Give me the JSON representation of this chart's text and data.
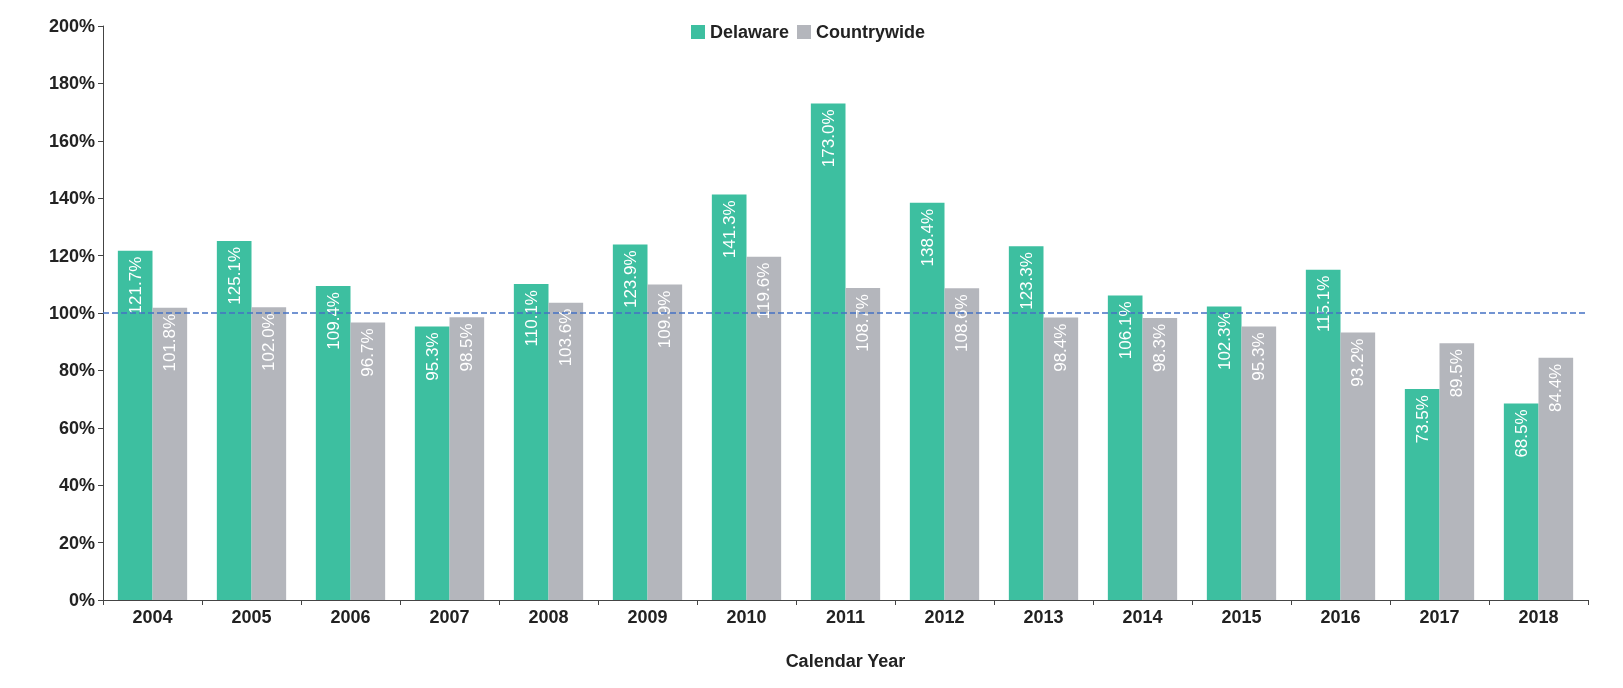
{
  "chart_data": {
    "type": "bar",
    "xlabel": "Calendar Year",
    "categories": [
      "2004",
      "2005",
      "2006",
      "2007",
      "2008",
      "2009",
      "2010",
      "2011",
      "2012",
      "2013",
      "2014",
      "2015",
      "2016",
      "2017",
      "2018"
    ],
    "series": [
      {
        "name": "Delaware",
        "color": "#3dbfa0",
        "values": [
          121.7,
          125.1,
          109.4,
          95.3,
          110.1,
          123.9,
          141.3,
          173.0,
          138.4,
          123.3,
          106.1,
          102.3,
          115.1,
          73.5,
          68.5
        ],
        "value_labels": [
          "121.7%",
          "125.1%",
          "109.4%",
          "95.3%",
          "110.1%",
          "123.9%",
          "141.3%",
          "173.0%",
          "138.4%",
          "123.3%",
          "106.1%",
          "102.3%",
          "115.1%",
          "73.5%",
          "68.5%"
        ]
      },
      {
        "name": "Countrywide",
        "color": "#b4b6bc",
        "values": [
          101.8,
          102.0,
          96.7,
          98.5,
          103.6,
          109.9,
          119.6,
          108.7,
          108.6,
          98.4,
          98.3,
          95.3,
          93.2,
          89.5,
          84.4
        ],
        "value_labels": [
          "101.8%",
          "102.0%",
          "96.7%",
          "98.5%",
          "103.6%",
          "109.9%",
          "119.6%",
          "108.7%",
          "108.6%",
          "98.4%",
          "98.3%",
          "95.3%",
          "93.2%",
          "89.5%",
          "84.4%"
        ]
      }
    ],
    "ylim": [
      0,
      200
    ],
    "yticks": [
      {
        "value": 0,
        "label": "0%"
      },
      {
        "value": 20,
        "label": "20%"
      },
      {
        "value": 40,
        "label": "40%"
      },
      {
        "value": 60,
        "label": "60%"
      },
      {
        "value": 80,
        "label": "80%"
      },
      {
        "value": 100,
        "label": "100%"
      },
      {
        "value": 120,
        "label": "120%"
      },
      {
        "value": 140,
        "label": "140%"
      },
      {
        "value": 160,
        "label": "160%"
      },
      {
        "value": 180,
        "label": "180%"
      },
      {
        "value": 200,
        "label": "200%"
      }
    ],
    "ref_lines": [
      {
        "axis": "y",
        "value": 100,
        "color": "#4472c4",
        "line_style": "dashed"
      }
    ],
    "legend": "top"
  }
}
